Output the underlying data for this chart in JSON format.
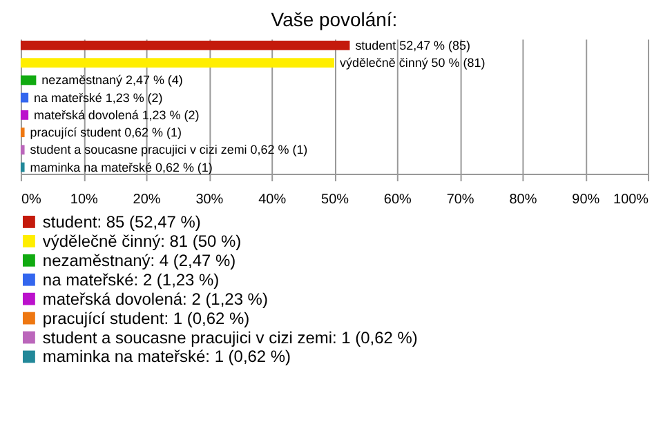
{
  "chart_data": {
    "type": "bar",
    "orientation": "horizontal",
    "stacked": true,
    "title": "Vaše povolání:",
    "categories": [
      null,
      null,
      null,
      null,
      null,
      null,
      null,
      null
    ],
    "series": [
      {
        "name": "student: 85 (52,47 %)",
        "color": "#c41a0c",
        "values": [
          52.47,
          null,
          null,
          null,
          null,
          null,
          null,
          null
        ],
        "value_labels": [
          "student 52,47 % (85)",
          null,
          null,
          null,
          null,
          null,
          null,
          null
        ]
      },
      {
        "name": "výdělečně činný: 81 (50 %)",
        "color": "#ffee00",
        "values": [
          null,
          50,
          null,
          null,
          null,
          null,
          null,
          null
        ],
        "value_labels": [
          null,
          "výdělečně činný 50 % (81)",
          null,
          null,
          null,
          null,
          null,
          null
        ]
      },
      {
        "name": "nezaměstnaný: 4 (2,47 %)",
        "color": "#11aa11",
        "values": [
          null,
          null,
          2.47,
          null,
          null,
          null,
          null,
          null
        ],
        "value_labels": [
          null,
          null,
          "nezaměstnaný 2,47 % (4)",
          null,
          null,
          null,
          null,
          null
        ]
      },
      {
        "name": "na mateřské: 2 (1,23 %)",
        "color": "#3366ee",
        "values": [
          null,
          null,
          null,
          1.23,
          null,
          null,
          null,
          null
        ],
        "value_labels": [
          null,
          null,
          null,
          "na mateřské 1,23 % (2)",
          null,
          null,
          null,
          null
        ]
      },
      {
        "name": "mateřská dovolená: 2 (1,23 %)",
        "color": "#bb11cc",
        "values": [
          null,
          null,
          null,
          null,
          1.23,
          null,
          null,
          null
        ],
        "value_labels": [
          null,
          null,
          null,
          null,
          "mateřská dovolená 1,23 % (2)",
          null,
          null,
          null
        ]
      },
      {
        "name": "pracující student: 1 (0,62 %)",
        "color": "#ee7711",
        "values": [
          null,
          null,
          null,
          null,
          null,
          0.62,
          null,
          null
        ],
        "value_labels": [
          null,
          null,
          null,
          null,
          null,
          "pracující student 0,62 % (1)",
          null,
          null
        ]
      },
      {
        "name": "student a soucasne pracujici v cizi zemi: 1 (0,62 %)",
        "color": "#bb66bb",
        "values": [
          null,
          null,
          null,
          null,
          null,
          null,
          0.62,
          null
        ],
        "value_labels": [
          null,
          null,
          null,
          null,
          null,
          null,
          "student a soucasne pracujici v cizi zemi 0,62 % (1)",
          null
        ]
      },
      {
        "name": "maminka na mateřské: 1 (0,62 %)",
        "color": "#228899",
        "values": [
          null,
          null,
          null,
          null,
          null,
          null,
          null,
          0.62
        ],
        "value_labels": [
          null,
          null,
          null,
          null,
          null,
          null,
          null,
          "maminka na mateřské 0,62 % (1)"
        ]
      }
    ],
    "xlim": [
      0,
      100
    ],
    "xticks": [
      {
        "value": 0,
        "label": "0%"
      },
      {
        "value": 10,
        "label": "10%"
      },
      {
        "value": 20,
        "label": "20%"
      },
      {
        "value": 30,
        "label": "30%"
      },
      {
        "value": 40,
        "label": "40%"
      },
      {
        "value": 50,
        "label": "50%"
      },
      {
        "value": 60,
        "label": "60%"
      },
      {
        "value": 70,
        "label": "70%"
      },
      {
        "value": 80,
        "label": "80%"
      },
      {
        "value": 90,
        "label": "90%"
      },
      {
        "value": 100,
        "label": "100%"
      }
    ],
    "grid": "x",
    "legend": "bottom",
    "tick_labels": "x"
  }
}
